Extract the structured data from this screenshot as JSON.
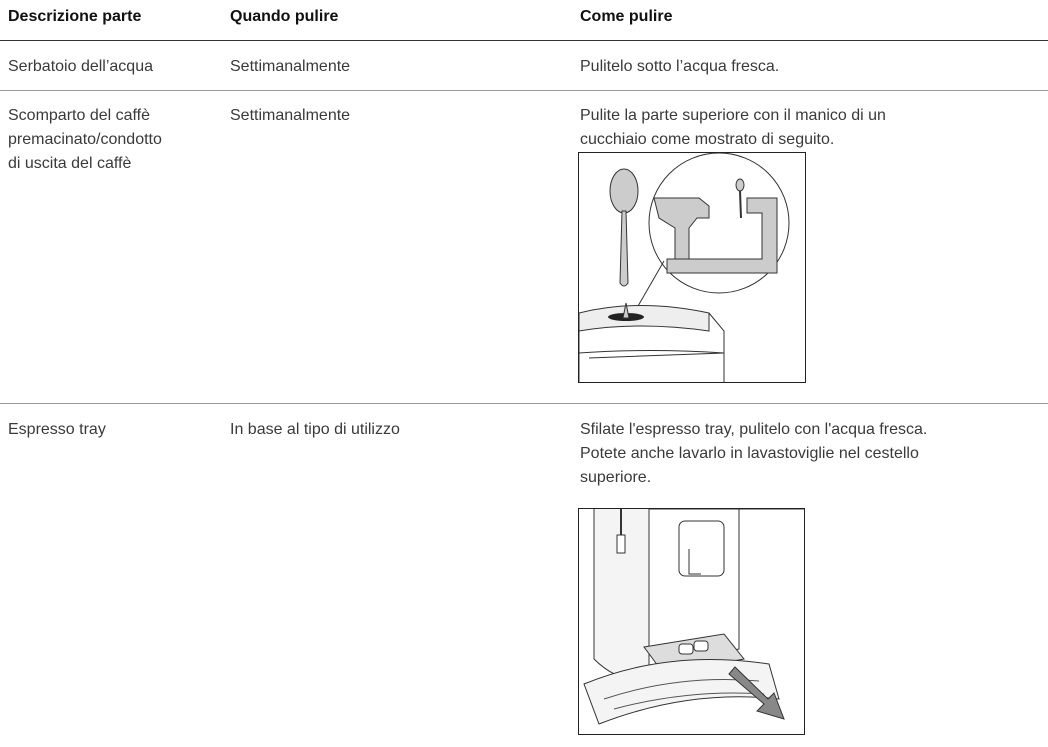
{
  "table": {
    "header": [
      "Descrizione parte",
      "Quando pulire",
      "Come pulire"
    ],
    "rows": [
      [
        [
          "Serbatoio dell’acqua"
        ],
        [
          "Settimanalmente"
        ],
        [
          "Pulitelo sotto l’acqua fresca."
        ]
      ],
      [
        [
          "Scomparto del caffè",
          "premacinato/condotto",
          "di uscita del caffè"
        ],
        [
          "Settimanalmente"
        ],
        [
          "Pulite la parte superiore con il manico di un",
          "cucchiaio come mostrato di seguito."
        ]
      ],
      [
        [
          "Espresso tray"
        ],
        [
          "In base al tipo di utilizzo"
        ],
        [
          "Sfilate l'espresso tray, pulitelo con l'acqua fresca.",
          "Potete anche lavarlo in lavastoviglie nel cestello",
          "superiore."
        ]
      ]
    ]
  }
}
